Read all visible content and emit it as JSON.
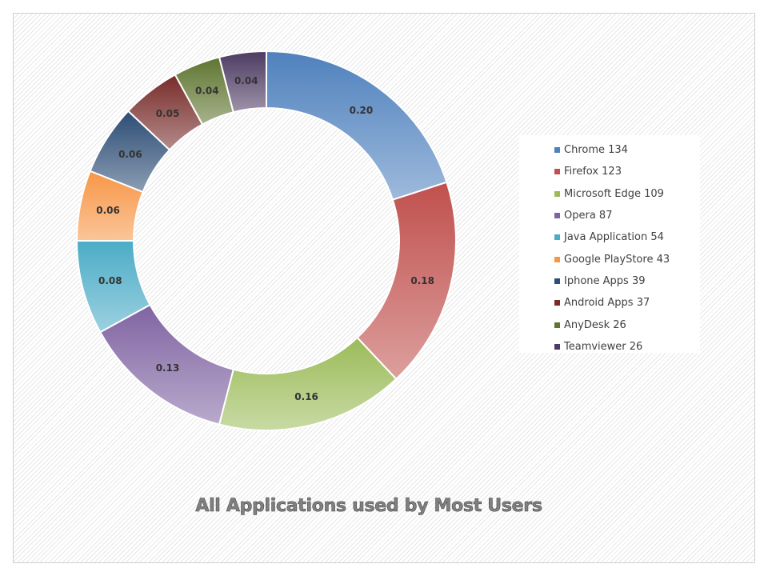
{
  "chart_data": {
    "type": "pie",
    "subtype": "donut",
    "title": "All Applications used by Most Users",
    "legend_position": "right",
    "slices": [
      {
        "name": "Chrome 134",
        "label": "0.20",
        "value": 0.2,
        "color": "#4f81bd"
      },
      {
        "name": "Firefox 123",
        "label": "0.18",
        "value": 0.18,
        "color": "#c0504d"
      },
      {
        "name": "Microsoft Edge 109",
        "label": "0.16",
        "value": 0.16,
        "color": "#9bbb59"
      },
      {
        "name": "Opera 87",
        "label": "0.13",
        "value": 0.13,
        "color": "#8064a2"
      },
      {
        "name": "Java Application 54",
        "label": "0.08",
        "value": 0.08,
        "color": "#4bacc6"
      },
      {
        "name": "Google PlayStore 43",
        "label": "0.06",
        "value": 0.06,
        "color": "#f79646"
      },
      {
        "name": "Iphone Apps 39",
        "label": "0.06",
        "value": 0.06,
        "color": "#2c4d75"
      },
      {
        "name": "Android Apps 37",
        "label": "0.05",
        "value": 0.05,
        "color": "#772c2a"
      },
      {
        "name": "AnyDesk 26",
        "label": "0.04",
        "value": 0.04,
        "color": "#5f7530"
      },
      {
        "name": "Teamviewer 26",
        "label": "0.04",
        "value": 0.04,
        "color": "#4d3b62"
      }
    ]
  }
}
